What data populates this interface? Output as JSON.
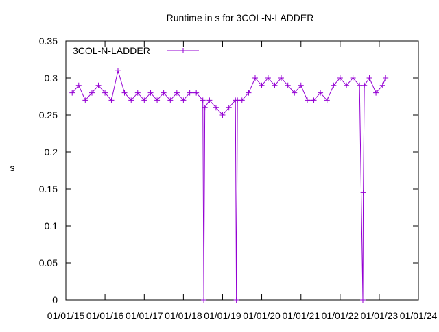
{
  "chart_data": {
    "type": "line",
    "title": "Runtime in s for 3COL-N-LADDER",
    "y_label": "s",
    "x": [
      "2015-03-01",
      "2015-05-01",
      "2015-07-01",
      "2015-09-01",
      "2015-11-01",
      "2016-01-01",
      "2016-03-01",
      "2016-05-01",
      "2016-07-01",
      "2016-09-01",
      "2016-11-01",
      "2017-01-01",
      "2017-03-01",
      "2017-05-01",
      "2017-07-01",
      "2017-09-01",
      "2017-11-01",
      "2018-01-01",
      "2018-03-01",
      "2018-05-01",
      "2018-07-01",
      "2018-07-10",
      "2018-07-20",
      "2018-09-01",
      "2018-11-01",
      "2019-01-01",
      "2019-03-01",
      "2019-05-01",
      "2019-05-10",
      "2019-05-20",
      "2019-07-01",
      "2019-09-01",
      "2019-11-01",
      "2020-01-01",
      "2020-03-01",
      "2020-05-01",
      "2020-07-01",
      "2020-09-01",
      "2020-11-01",
      "2021-01-01",
      "2021-03-01",
      "2021-05-01",
      "2021-07-01",
      "2021-09-01",
      "2021-11-01",
      "2022-01-01",
      "2022-03-01",
      "2022-05-01",
      "2022-07-01",
      "2022-08-01",
      "2022-08-05",
      "2022-08-15",
      "2022-10-01",
      "2022-12-01",
      "2023-02-01",
      "2023-03-01"
    ],
    "series": [
      {
        "name": "3COL-N-LADDER",
        "color": "#9400d3",
        "values": [
          0.28,
          0.29,
          0.27,
          0.28,
          0.29,
          0.28,
          0.27,
          0.31,
          0.28,
          0.27,
          0.28,
          0.27,
          0.28,
          0.27,
          0.28,
          0.27,
          0.28,
          0.27,
          0.28,
          0.28,
          0.27,
          0,
          0.26,
          0.27,
          0.26,
          0.25,
          0.26,
          0.27,
          0,
          0.27,
          0.27,
          0.28,
          0.3,
          0.29,
          0.3,
          0.29,
          0.3,
          0.29,
          0.28,
          0.29,
          0.27,
          0.27,
          0.28,
          0.27,
          0.29,
          0.3,
          0.29,
          0.3,
          0.29,
          0,
          0.145,
          0.29,
          0.3,
          0.28,
          0.29,
          0.3
        ]
      }
    ],
    "xlim": [
      "2015-01-01",
      "2024-01-01"
    ],
    "xticks": [
      {
        "value": "2015-01-01",
        "label": "01/01/15"
      },
      {
        "value": "2016-01-01",
        "label": "01/01/16"
      },
      {
        "value": "2017-01-01",
        "label": "01/01/17"
      },
      {
        "value": "2018-01-01",
        "label": "01/01/18"
      },
      {
        "value": "2019-01-01",
        "label": "01/01/19"
      },
      {
        "value": "2020-01-01",
        "label": "01/01/20"
      },
      {
        "value": "2021-01-01",
        "label": "01/01/21"
      },
      {
        "value": "2022-01-01",
        "label": "01/01/22"
      },
      {
        "value": "2023-01-01",
        "label": "01/01/23"
      },
      {
        "value": "2024-01-01",
        "label": "01/01/24"
      }
    ],
    "ylim": [
      0,
      0.35
    ],
    "yticks": [
      0,
      0.05,
      0.1,
      0.15,
      0.2,
      0.25,
      0.3,
      0.35
    ],
    "legend": "top-left"
  }
}
